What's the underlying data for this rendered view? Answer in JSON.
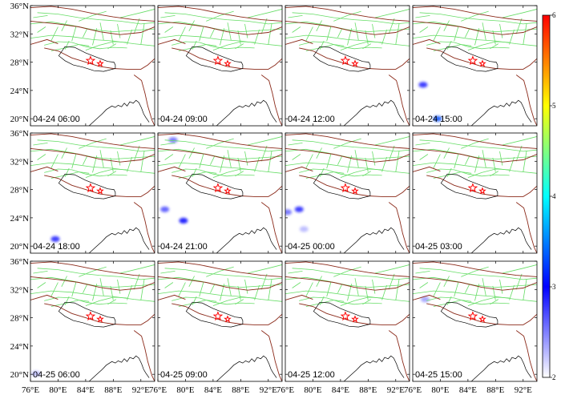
{
  "chart_data": {
    "type": "heatmap",
    "title": "",
    "layout": {
      "rows": 3,
      "cols": 4
    },
    "extent": {
      "lon": [
        76,
        94
      ],
      "lat": [
        19,
        36
      ]
    },
    "x_ticks": [
      "76°E",
      "80°E",
      "84°E",
      "88°E",
      "92°E"
    ],
    "x_tick_values": [
      76,
      80,
      84,
      88,
      92
    ],
    "y_ticks": [
      "20°N",
      "24°N",
      "28°N",
      "32°N",
      "36°N"
    ],
    "y_tick_values": [
      20,
      24,
      28,
      32,
      36
    ],
    "colorbar": {
      "min": 2,
      "max": 6,
      "ticks": [
        "2",
        "3",
        "4",
        "5",
        "6"
      ],
      "tick_values": [
        2,
        3,
        4,
        5,
        6
      ],
      "colors": [
        "#ffffff",
        "#0000ff",
        "#00ffff",
        "#ffff00",
        "#ff0000"
      ]
    },
    "colors": {
      "fault_lines": "#66dd66",
      "block_boundaries": "#8b2a1a",
      "coastline": "#000000",
      "epicenter": "#ff0000"
    },
    "epicenters": [
      {
        "lon": 84.7,
        "lat": 28.2,
        "size": "large"
      },
      {
        "lon": 86.1,
        "lat": 27.8,
        "size": "small"
      }
    ],
    "panels": [
      {
        "label": "04-24 06:00",
        "anomalies": []
      },
      {
        "label": "04-24 09:00",
        "anomalies": []
      },
      {
        "label": "04-24 12:00",
        "anomalies": []
      },
      {
        "label": "04-24 15:00",
        "anomalies": [
          {
            "lon": 77.5,
            "lat": 24.8,
            "value": 2.9
          },
          {
            "lon": 79.6,
            "lat": 20.0,
            "value": 3.3
          }
        ]
      },
      {
        "label": "04-24 18:00",
        "anomalies": [
          {
            "lon": 79.6,
            "lat": 21.0,
            "value": 2.9
          }
        ]
      },
      {
        "label": "04-24 21:00",
        "anomalies": [
          {
            "lon": 78.2,
            "lat": 35.0,
            "value": 2.6
          },
          {
            "lon": 77.0,
            "lat": 25.2,
            "value": 2.7
          },
          {
            "lon": 79.7,
            "lat": 23.6,
            "value": 3.0
          }
        ]
      },
      {
        "label": "04-25 00:00",
        "anomalies": [
          {
            "lon": 78.0,
            "lat": 25.2,
            "value": 2.9
          },
          {
            "lon": 76.3,
            "lat": 24.8,
            "value": 2.6
          },
          {
            "lon": 78.7,
            "lat": 22.4,
            "value": 2.3
          }
        ]
      },
      {
        "label": "04-25 03:00",
        "anomalies": []
      },
      {
        "label": "04-25 06:00",
        "anomalies": [
          {
            "lon": 76.8,
            "lat": 20.1,
            "value": 2.3
          }
        ]
      },
      {
        "label": "04-25 09:00",
        "anomalies": []
      },
      {
        "label": "04-25 12:00",
        "anomalies": []
      },
      {
        "label": "04-25 15:00",
        "anomalies": [
          {
            "lon": 77.8,
            "lat": 30.6,
            "value": 2.4
          }
        ]
      }
    ]
  }
}
